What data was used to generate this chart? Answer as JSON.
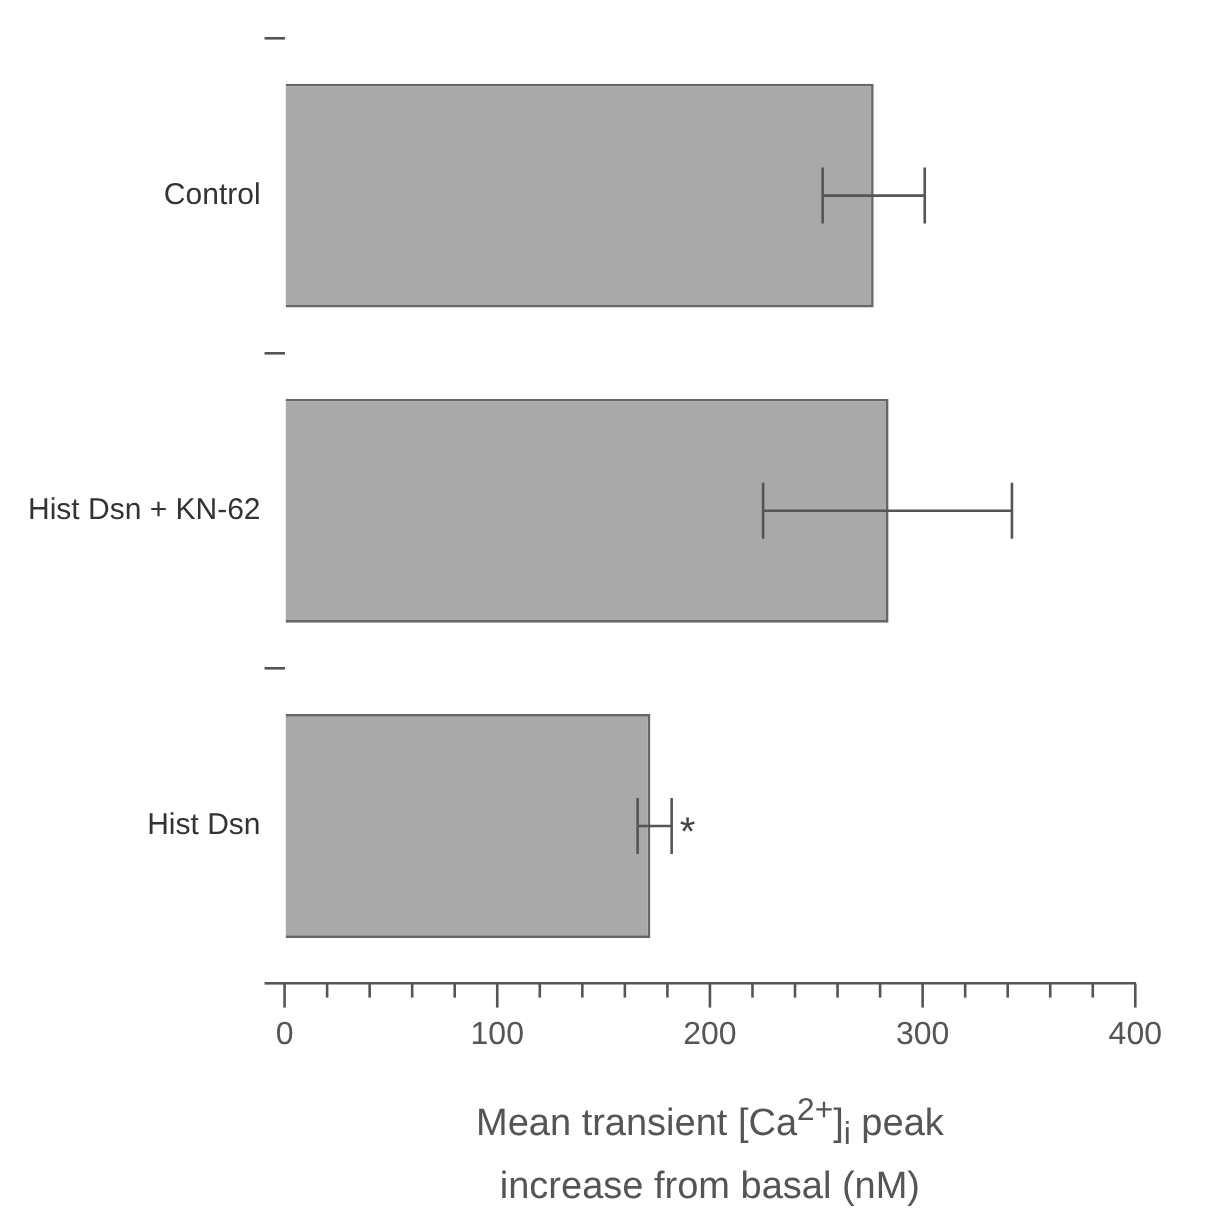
{
  "chart_data": {
    "type": "bar",
    "orientation": "horizontal",
    "categories": [
      "Control",
      "Hist Dsn + KN-62",
      "Hist Dsn"
    ],
    "values": [
      277,
      284,
      172
    ],
    "errors": [
      [
        253,
        301
      ],
      [
        225,
        342
      ],
      [
        166,
        182
      ]
    ],
    "color": "#a9a9a9",
    "xlabel": "Mean transient [Ca$^{2+}$]$_{i}$ peak increase from basal (nM)",
    "xlim": [
      0,
      400
    ],
    "xticks": [
      0,
      {
        "value": 20,
        "label": null
      },
      {
        "value": 40,
        "label": null
      },
      {
        "value": 60,
        "label": null
      },
      {
        "value": 80,
        "label": null
      },
      100,
      {
        "value": 120,
        "label": null
      },
      {
        "value": 140,
        "label": null
      },
      {
        "value": 160,
        "label": null
      },
      {
        "value": 180,
        "label": null
      },
      200,
      {
        "value": 220,
        "label": null
      },
      {
        "value": 240,
        "label": null
      },
      {
        "value": 260,
        "label": null
      },
      {
        "value": 280,
        "label": null
      },
      300,
      {
        "value": 320,
        "label": null
      },
      {
        "value": 340,
        "label": null
      },
      {
        "value": 360,
        "label": null
      },
      {
        "value": 380,
        "label": null
      },
      400
    ],
    "annotations": [
      {
        "text": "*",
        "x": 182,
        "y": "Hist Dsn"
      }
    ],
    "grid": false,
    "legend": false
  }
}
